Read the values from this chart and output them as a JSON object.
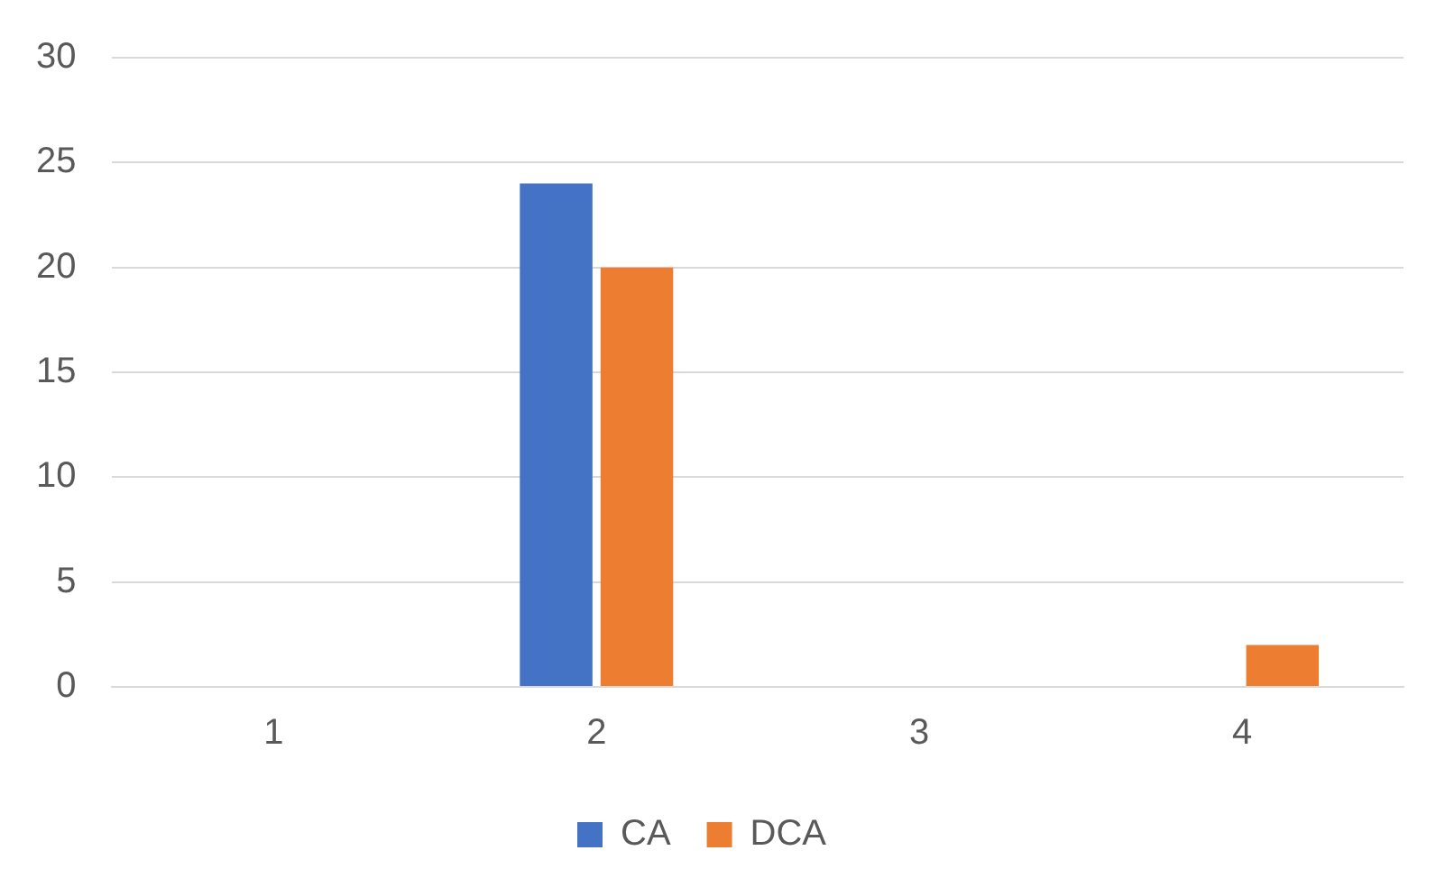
{
  "chart_data": {
    "type": "bar",
    "categories": [
      "1",
      "2",
      "3",
      "4"
    ],
    "series": [
      {
        "name": "CA",
        "color": "#4472c4",
        "values": [
          0,
          24,
          0,
          0
        ]
      },
      {
        "name": "DCA",
        "color": "#ed7d31",
        "values": [
          0,
          20,
          0,
          2
        ]
      }
    ],
    "ylim": [
      0,
      30
    ],
    "yticks": [
      0,
      5,
      10,
      15,
      20,
      25,
      30
    ],
    "grid": "y",
    "legend": "bottom"
  }
}
